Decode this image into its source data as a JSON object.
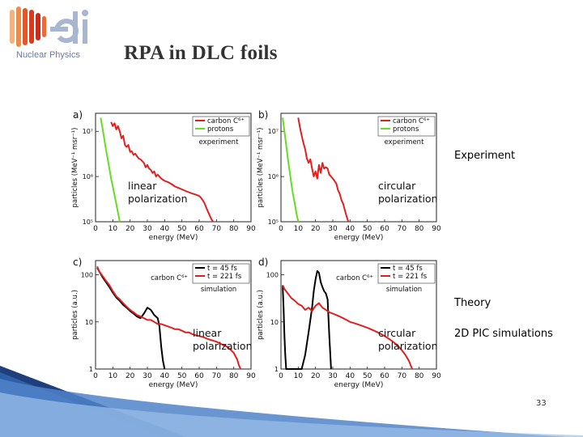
{
  "slide": {
    "title": "RPA in DLC foils",
    "logo_text": "Nuclear Physics",
    "label_experiment": "Experiment",
    "label_theory": "Theory",
    "label_pic": "2D PIC simulations",
    "page_number": "33"
  },
  "colors": {
    "carbon": "#e02020",
    "protons": "#66dd22",
    "sim45": "#000000",
    "sim221": "#e02020",
    "accent": "#3e6fb2"
  },
  "icons": [
    "eli-logo-icon"
  ],
  "chart_data": [
    {
      "type": "line",
      "panel": "a)",
      "scale_y": "log",
      "xlabel": "energy (MeV)",
      "ylabel": "particles (MeV⁻¹ msr⁻¹)",
      "xticks": [
        0,
        10,
        20,
        30,
        40,
        50,
        60,
        70,
        80,
        90
      ],
      "yticks": [
        {
          "v": 100000,
          "label": "10⁵"
        },
        {
          "v": 1000000,
          "label": "10⁶"
        },
        {
          "v": 10000000,
          "label": "10⁷"
        }
      ],
      "xlim": [
        0,
        90
      ],
      "ylim": [
        100000,
        25000000
      ],
      "legend": [
        "carbon C⁶⁺",
        "protons"
      ],
      "legend_note": "experiment",
      "annotation": [
        "linear",
        "polarization"
      ],
      "series": [
        {
          "name": "carbon C⁶⁺",
          "color": "#e02020",
          "x": [
            9,
            10,
            11,
            12,
            13,
            14,
            15,
            16,
            17,
            18,
            19,
            20,
            21,
            22,
            23,
            24,
            25,
            26,
            27,
            28,
            29,
            30,
            31,
            32,
            33,
            34,
            35,
            36,
            38,
            40,
            42,
            44,
            46,
            48,
            50,
            52,
            54,
            56,
            58,
            60,
            61,
            62,
            63,
            64,
            65,
            66,
            67,
            68
          ],
          "y": [
            16000000,
            13000000,
            15000000,
            11000000,
            13000000,
            10000000,
            7000000,
            8000000,
            5000000,
            4500000,
            5000000,
            3500000,
            3600000,
            3000000,
            3200000,
            2800000,
            2500000,
            2400000,
            2200000,
            2000000,
            1600000,
            1800000,
            1500000,
            1400000,
            1200000,
            1300000,
            1000000,
            1100000,
            900000,
            800000,
            750000,
            680000,
            600000,
            560000,
            520000,
            480000,
            450000,
            420000,
            400000,
            370000,
            340000,
            300000,
            260000,
            210000,
            170000,
            140000,
            115000,
            100000
          ]
        },
        {
          "name": "protons",
          "color": "#66dd22",
          "x": [
            3,
            4,
            5,
            6,
            7,
            8,
            9,
            10,
            11,
            12,
            13,
            14
          ],
          "y": [
            20000000,
            12000000,
            7000000,
            4000000,
            2500000,
            1500000,
            900000,
            600000,
            380000,
            250000,
            160000,
            100000
          ]
        }
      ]
    },
    {
      "type": "line",
      "panel": "b)",
      "scale_y": "log",
      "xlabel": "energy (MeV)",
      "ylabel": "particles (MeV⁻¹ msr⁻¹)",
      "xticks": [
        0,
        10,
        20,
        30,
        40,
        50,
        60,
        70,
        80,
        90
      ],
      "yticks": [
        {
          "v": 100000,
          "label": "10⁵"
        },
        {
          "v": 1000000,
          "label": "10⁶"
        },
        {
          "v": 10000000,
          "label": "10⁷"
        }
      ],
      "xlim": [
        0,
        90
      ],
      "ylim": [
        100000,
        25000000
      ],
      "legend": [
        "carbon C⁶⁺",
        "protons"
      ],
      "legend_note": "experiment",
      "annotation": [
        "circular",
        "polarization"
      ],
      "series": [
        {
          "name": "carbon C⁶⁺",
          "color": "#e02020",
          "x": [
            10,
            11,
            12,
            13,
            14,
            15,
            16,
            17,
            18,
            19,
            20,
            21,
            22,
            23,
            24,
            25,
            26,
            27,
            28,
            29,
            30,
            31,
            32,
            33,
            34,
            35,
            36,
            37,
            38,
            39
          ],
          "y": [
            20000000,
            12000000,
            8000000,
            5500000,
            4000000,
            2500000,
            2000000,
            2400000,
            1500000,
            1000000,
            1300000,
            900000,
            1800000,
            1200000,
            2000000,
            1500000,
            1600000,
            1500000,
            1100000,
            1000000,
            900000,
            800000,
            700000,
            500000,
            420000,
            300000,
            250000,
            180000,
            130000,
            100000
          ]
        },
        {
          "name": "protons",
          "color": "#66dd22",
          "x": [
            1,
            2,
            3,
            4,
            5,
            6,
            7,
            8,
            9,
            10
          ],
          "y": [
            20000000,
            10000000,
            5000000,
            2500000,
            1300000,
            700000,
            400000,
            250000,
            150000,
            100000
          ]
        }
      ]
    },
    {
      "type": "line",
      "panel": "c)",
      "scale_y": "log",
      "xlabel": "energy (MeV)",
      "ylabel": "particles (a.u.)",
      "xticks": [
        0,
        10,
        20,
        30,
        40,
        50,
        60,
        70,
        80,
        90
      ],
      "yticks": [
        {
          "v": 1,
          "label": "1"
        },
        {
          "v": 10,
          "label": "10"
        },
        {
          "v": 100,
          "label": "100"
        }
      ],
      "xlim": [
        0,
        90
      ],
      "ylim": [
        1,
        200
      ],
      "legend": [
        "t = 45 fs",
        "t = 221 fs"
      ],
      "legend_note": "simulation",
      "annotation_top": "carbon C⁶⁺",
      "annotation": [
        "linear",
        "polarization"
      ],
      "series": [
        {
          "name": "t = 45 fs",
          "color": "#000000",
          "x": [
            1,
            2,
            4,
            6,
            8,
            10,
            12,
            14,
            16,
            18,
            20,
            22,
            24,
            26,
            28,
            30,
            32,
            34,
            36,
            37,
            38,
            39,
            40
          ],
          "y": [
            140,
            120,
            90,
            70,
            55,
            42,
            33,
            28,
            23,
            20,
            17,
            15,
            13,
            12,
            15,
            20,
            18,
            14,
            12,
            8,
            3,
            1.5,
            1
          ]
        },
        {
          "name": "t = 221 fs",
          "color": "#e02020",
          "x": [
            1,
            2,
            4,
            6,
            8,
            10,
            12,
            14,
            16,
            18,
            20,
            22,
            24,
            26,
            28,
            30,
            32,
            34,
            36,
            38,
            40,
            42,
            44,
            46,
            48,
            50,
            52,
            54,
            56,
            58,
            60,
            62,
            64,
            66,
            68,
            70,
            72,
            74,
            76,
            78,
            80,
            82,
            83,
            84
          ],
          "y": [
            150,
            120,
            95,
            75,
            60,
            45,
            35,
            30,
            25,
            21,
            18,
            16,
            14,
            13,
            12,
            11,
            11,
            10,
            9,
            9,
            8.5,
            8,
            7.5,
            7,
            7,
            6.5,
            6,
            6,
            5.5,
            5.2,
            5,
            4.8,
            4.5,
            4.2,
            4,
            3.8,
            3.5,
            3.2,
            3,
            2.6,
            2.2,
            1.6,
            1.2,
            1
          ]
        }
      ]
    },
    {
      "type": "line",
      "panel": "d)",
      "scale_y": "log",
      "xlabel": "energy (MeV)",
      "ylabel": "particles (a.u.)",
      "xticks": [
        0,
        10,
        20,
        30,
        40,
        50,
        60,
        70,
        80,
        90
      ],
      "yticks": [
        {
          "v": 1,
          "label": "1"
        },
        {
          "v": 10,
          "label": "10"
        },
        {
          "v": 100,
          "label": "100"
        }
      ],
      "xlim": [
        0,
        90
      ],
      "ylim": [
        1,
        200
      ],
      "legend": [
        "t = 45 fs",
        "t = 221 fs"
      ],
      "legend_note": "simulation",
      "annotation_top": "carbon C⁶⁺",
      "annotation": [
        "circular",
        "polarization"
      ],
      "series": [
        {
          "name": "t = 45 fs",
          "color": "#000000",
          "x": [
            1,
            1.5,
            2,
            2.5,
            3,
            12,
            14,
            16,
            18,
            19,
            20,
            21,
            22,
            23,
            24,
            25,
            26,
            27,
            28,
            29
          ],
          "y": [
            60,
            20,
            5,
            2,
            1,
            1,
            2,
            6,
            20,
            45,
            80,
            120,
            110,
            70,
            55,
            45,
            40,
            30,
            5,
            1
          ]
        },
        {
          "name": "t = 221 fs",
          "color": "#e02020",
          "x": [
            1,
            2,
            4,
            6,
            8,
            10,
            12,
            14,
            16,
            18,
            20,
            22,
            24,
            26,
            28,
            30,
            32,
            34,
            36,
            38,
            40,
            42,
            44,
            46,
            48,
            50,
            52,
            54,
            56,
            58,
            60,
            62,
            64,
            66,
            68,
            70,
            72,
            74,
            76
          ],
          "y": [
            60,
            50,
            40,
            32,
            28,
            24,
            22,
            18,
            20,
            17,
            22,
            25,
            20,
            18,
            16,
            15,
            14,
            13,
            12,
            11,
            10,
            9.5,
            9,
            8.5,
            8,
            7.5,
            7,
            6.5,
            6,
            5.5,
            5,
            4.5,
            4,
            3.5,
            3,
            2.5,
            2,
            1.5,
            1
          ]
        }
      ]
    }
  ]
}
